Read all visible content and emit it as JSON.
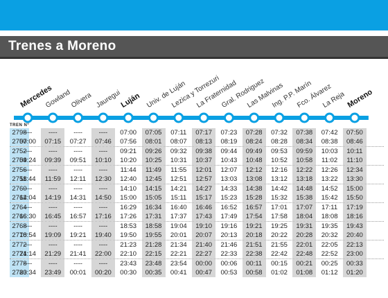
{
  "header": {
    "title": "Trenes a Moreno"
  },
  "tren_label": "TREN N°",
  "stations": [
    {
      "name": "Mercedes",
      "bold": true
    },
    {
      "name": "Gowland",
      "bold": false
    },
    {
      "name": "Olivera",
      "bold": false
    },
    {
      "name": "Jauregui",
      "bold": false
    },
    {
      "name": "Luján",
      "bold": true
    },
    {
      "name": "Univ. de Luján",
      "bold": false
    },
    {
      "name": "Lezica y Torrezuri",
      "bold": false
    },
    {
      "name": "La Fraternidad",
      "bold": false
    },
    {
      "name": "Gral. Rodriguez",
      "bold": false
    },
    {
      "name": "Las Malvinas",
      "bold": false
    },
    {
      "name": "Ing. P.P. Marín",
      "bold": false
    },
    {
      "name": "Fco. Álvarez",
      "bold": false
    },
    {
      "name": "La Reja",
      "bold": false
    },
    {
      "name": "Moreno",
      "bold": true
    }
  ],
  "colors": {
    "accent": "#0aa0e3",
    "title_bar": "#555555",
    "train_number_bg": "#bfe3f5",
    "alt_column_bg": "#d6d6d6"
  },
  "rows": [
    {
      "train": "2798",
      "times": [
        "----",
        "----",
        "----",
        "----",
        "07:00",
        "07:05",
        "07:11",
        "07:17",
        "07:23",
        "07:28",
        "07:32",
        "07:38",
        "07:42",
        "07:50"
      ]
    },
    {
      "train": "2750",
      "times": [
        "07:00",
        "07:15",
        "07:27",
        "07:46",
        "07:56",
        "08:01",
        "08:07",
        "08:13",
        "08:19",
        "08:24",
        "08:28",
        "08:34",
        "08:38",
        "08:46"
      ]
    },
    {
      "train": "2752",
      "times": [
        "----",
        "----",
        "----",
        "----",
        "09:21",
        "09:26",
        "09:32",
        "09:38",
        "09:44",
        "09:49",
        "09:53",
        "09:59",
        "10:03",
        "10:11"
      ]
    },
    {
      "train": "2754",
      "times": [
        "09:24",
        "09:39",
        "09:51",
        "10:10",
        "10:20",
        "10:25",
        "10:31",
        "10:37",
        "10:43",
        "10:48",
        "10:52",
        "10:58",
        "11:02",
        "11:10"
      ]
    },
    {
      "train": "2756",
      "times": [
        "----",
        "----",
        "----",
        "----",
        "11:44",
        "11:49",
        "11:55",
        "12:01",
        "12:07",
        "12:12",
        "12:16",
        "12:22",
        "12:26",
        "12:34"
      ]
    },
    {
      "train": "2758",
      "times": [
        "11:44",
        "11:59",
        "12:11",
        "12:30",
        "12:40",
        "12:45",
        "12:51",
        "12:57",
        "13:03",
        "13:08",
        "13:12",
        "13:18",
        "13:22",
        "13:30"
      ]
    },
    {
      "train": "2760",
      "times": [
        "----",
        "----",
        "----",
        "----",
        "14:10",
        "14:15",
        "14:21",
        "14:27",
        "14:33",
        "14:38",
        "14:42",
        "14:48",
        "14:52",
        "15:00"
      ]
    },
    {
      "train": "2762",
      "times": [
        "14:04",
        "14:19",
        "14:31",
        "14:50",
        "15:00",
        "15:05",
        "15:11",
        "15:17",
        "15:23",
        "15:28",
        "15:32",
        "15:38",
        "15:42",
        "15:50"
      ]
    },
    {
      "train": "2764",
      "times": [
        "----",
        "----",
        "----",
        "----",
        "16:29",
        "16:34",
        "16:40",
        "16:46",
        "16:52",
        "16:57",
        "17:01",
        "17:07",
        "17:11",
        "17:19"
      ]
    },
    {
      "train": "2766",
      "times": [
        "16:30",
        "16:45",
        "16:57",
        "17:16",
        "17:26",
        "17:31",
        "17:37",
        "17:43",
        "17:49",
        "17:54",
        "17:58",
        "18:04",
        "18:08",
        "18:16"
      ]
    },
    {
      "train": "2768",
      "times": [
        "----",
        "----",
        "----",
        "----",
        "18:53",
        "18:58",
        "19:04",
        "19:10",
        "19:16",
        "19:21",
        "19:25",
        "19:31",
        "19:35",
        "19:43"
      ]
    },
    {
      "train": "2770",
      "times": [
        "18:54",
        "19:09",
        "19:21",
        "19:40",
        "19:50",
        "19:55",
        "20:01",
        "20:07",
        "20:13",
        "20:18",
        "20:22",
        "20:28",
        "20:32",
        "20:40"
      ]
    },
    {
      "train": "2772",
      "times": [
        "----",
        "----",
        "----",
        "----",
        "21:23",
        "21:28",
        "21:34",
        "21:40",
        "21:46",
        "21:51",
        "21:55",
        "22:01",
        "22:05",
        "22:13"
      ]
    },
    {
      "train": "2774",
      "times": [
        "21:14",
        "21:29",
        "21:41",
        "22:00",
        "22:10",
        "22:15",
        "22:21",
        "22:27",
        "22:33",
        "22:38",
        "22:42",
        "22:48",
        "22:52",
        "23:00"
      ]
    },
    {
      "train": "2778",
      "times": [
        "----",
        "----",
        "----",
        "----",
        "23:43",
        "23:48",
        "23:54",
        "00:00",
        "00:06",
        "00:11",
        "00:15",
        "00:21",
        "00:25",
        "00:33"
      ]
    },
    {
      "train": "2780",
      "times": [
        "23:34",
        "23:49",
        "00:01",
        "00:20",
        "00:30",
        "00:35",
        "00:41",
        "00:47",
        "00:53",
        "00:58",
        "01:02",
        "01:08",
        "01:12",
        "01:20"
      ]
    }
  ]
}
